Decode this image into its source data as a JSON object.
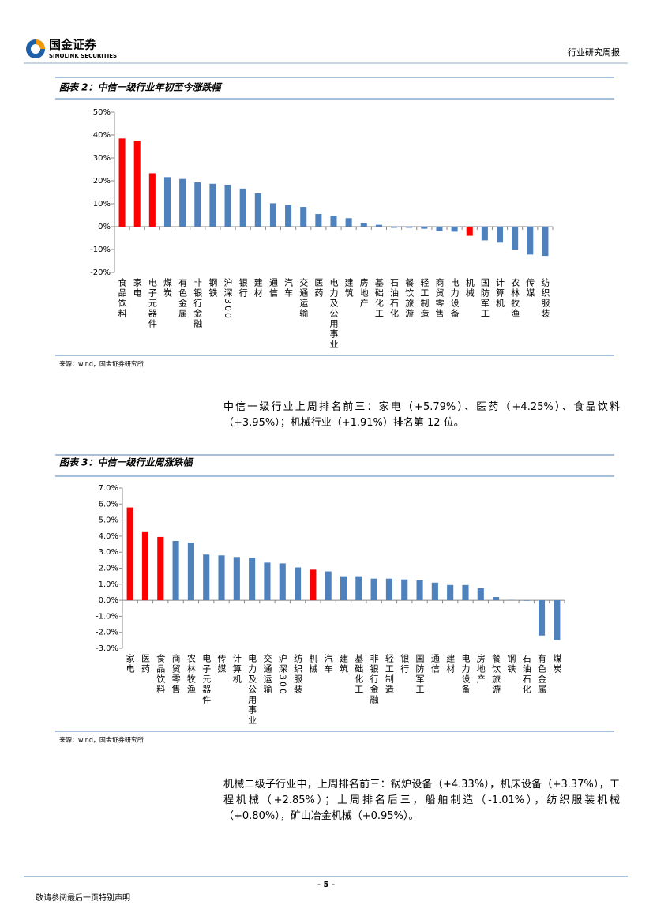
{
  "header": {
    "logo_cn": "国金证券",
    "logo_en": "SINOLINK SECURITIES",
    "report_type": "行业研究周报"
  },
  "chart_data": [
    {
      "type": "bar",
      "title": "图表 2：中信一级行业年初至今涨跌幅",
      "source": "来源：wind，国金证券研究所",
      "categories": [
        "食品饮料",
        "家电",
        "电子元器件",
        "煤炭",
        "有色金属",
        "非银行金融",
        "钢铁",
        "沪深300",
        "银行",
        "建材",
        "通信",
        "汽车",
        "交通运输",
        "医药",
        "电力及公用事业",
        "建筑",
        "房地产",
        "基础化工",
        "石油石化",
        "餐饮旅游",
        "轻工制造",
        "商贸零售",
        "电力设备",
        "机械",
        "国防军工",
        "计算机",
        "农林牧渔",
        "传媒",
        "纺织服装"
      ],
      "values": [
        38.5,
        37.5,
        23.3,
        21.6,
        20.8,
        19.3,
        18.7,
        18.3,
        16.6,
        14.5,
        10.2,
        9.5,
        8.6,
        5.5,
        4.8,
        3.7,
        1.5,
        0.8,
        -0.5,
        -0.5,
        -0.9,
        -2.0,
        -2.2,
        -4.0,
        -6.0,
        -7.0,
        -10.0,
        -12.2,
        -12.8
      ],
      "colors": [
        "#ff0000",
        "#ff0000",
        "#ff0000",
        "#4f81bd",
        "#4f81bd",
        "#4f81bd",
        "#4f81bd",
        "#4f81bd",
        "#4f81bd",
        "#4f81bd",
        "#4f81bd",
        "#4f81bd",
        "#4f81bd",
        "#4f81bd",
        "#4f81bd",
        "#4f81bd",
        "#4f81bd",
        "#4f81bd",
        "#4f81bd",
        "#4f81bd",
        "#4f81bd",
        "#4f81bd",
        "#4f81bd",
        "#ff0000",
        "#4f81bd",
        "#4f81bd",
        "#4f81bd",
        "#4f81bd",
        "#4f81bd"
      ],
      "ylim": [
        -20,
        50
      ],
      "yticks": [
        {
          "value": -20,
          "label": "-20%"
        },
        {
          "value": -10,
          "label": "-10%"
        },
        {
          "value": 0,
          "label": "0%"
        },
        {
          "value": 10,
          "label": "10%"
        },
        {
          "value": 20,
          "label": "20%"
        },
        {
          "value": 30,
          "label": "30%"
        },
        {
          "value": 40,
          "label": "40%"
        },
        {
          "value": 50,
          "label": "50%"
        }
      ]
    },
    {
      "type": "bar",
      "title": "图表 3：中信一级行业周涨跌幅",
      "source": "来源：wind，国金证券研究所",
      "categories": [
        "家电",
        "医药",
        "食品饮料",
        "商贸零售",
        "农林牧渔",
        "电子元器件",
        "传媒",
        "计算机",
        "电力及公用事业",
        "交通运输",
        "沪深300",
        "纺织服装",
        "机械",
        "汽车",
        "建筑",
        "基础化工",
        "非银行金融",
        "轻工制造",
        "银行",
        "国防军工",
        "通信",
        "建材",
        "电力设备",
        "房地产",
        "餐饮旅游",
        "钢铁",
        "石油石化",
        "有色金属",
        "煤炭"
      ],
      "values": [
        5.79,
        4.25,
        3.95,
        3.7,
        3.6,
        2.85,
        2.8,
        2.7,
        2.65,
        2.35,
        2.3,
        2.05,
        1.91,
        1.8,
        1.5,
        1.5,
        1.35,
        1.35,
        1.3,
        1.25,
        1.1,
        0.95,
        0.95,
        0.75,
        0.2,
        0.02,
        -0.03,
        -2.2,
        -2.5
      ],
      "colors": [
        "#ff0000",
        "#ff0000",
        "#ff0000",
        "#4f81bd",
        "#4f81bd",
        "#4f81bd",
        "#4f81bd",
        "#4f81bd",
        "#4f81bd",
        "#4f81bd",
        "#4f81bd",
        "#4f81bd",
        "#ff0000",
        "#4f81bd",
        "#4f81bd",
        "#4f81bd",
        "#4f81bd",
        "#4f81bd",
        "#4f81bd",
        "#4f81bd",
        "#4f81bd",
        "#4f81bd",
        "#4f81bd",
        "#4f81bd",
        "#4f81bd",
        "#4f81bd",
        "#4f81bd",
        "#4f81bd",
        "#4f81bd"
      ],
      "ylim": [
        -3,
        7
      ],
      "yticks": [
        {
          "value": -3,
          "label": "-3.0%"
        },
        {
          "value": -2,
          "label": "-2.0%"
        },
        {
          "value": -1,
          "label": "-1.0%"
        },
        {
          "value": 0,
          "label": "0.0%"
        },
        {
          "value": 1,
          "label": "1.0%"
        },
        {
          "value": 2,
          "label": "2.0%"
        },
        {
          "value": 3,
          "label": "3.0%"
        },
        {
          "value": 4,
          "label": "4.0%"
        },
        {
          "value": 5,
          "label": "5.0%"
        },
        {
          "value": 6,
          "label": "6.0%"
        },
        {
          "value": 7,
          "label": "7.0%"
        }
      ]
    }
  ],
  "paragraphs": [
    "中信一级行业上周排名前三：家电（+5.79%）、医药（+4.25%）、食品饮料（+3.95%）；机械行业（+1.91%）排名第 12 位。",
    "机械二级子行业中，上周排名前三：锅炉设备（+4.33%），机床设备（+3.37%），工程机械（+2.85%）；上周排名后三，船舶制造（-1.01%），纺织服装机械（+0.80%），矿山冶金机械（+0.95%）。"
  ],
  "footer": {
    "page": "- 5 -",
    "disclaimer": "敬请参阅最后一页特别声明"
  }
}
